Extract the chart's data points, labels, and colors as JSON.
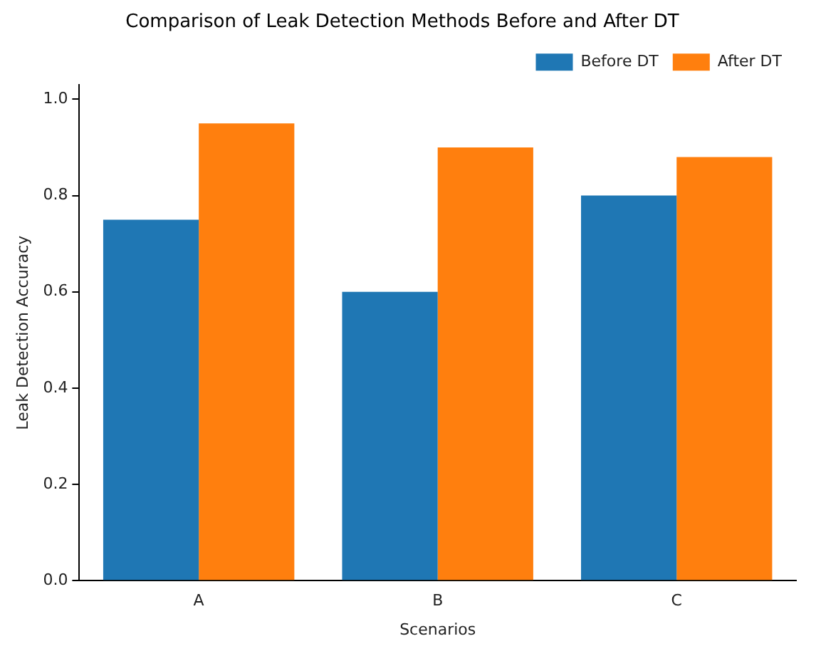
{
  "chart_data": {
    "type": "bar",
    "title": "Comparison of Leak Detection Methods Before and After DT",
    "xlabel": "Scenarios",
    "ylabel": "Leak Detection Accuracy",
    "categories": [
      "A",
      "B",
      "C"
    ],
    "series": [
      {
        "name": "Before DT",
        "color": "#1f77b4",
        "values": [
          0.75,
          0.6,
          0.8
        ]
      },
      {
        "name": "After DT",
        "color": "#ff7f0e",
        "values": [
          0.95,
          0.9,
          0.88
        ]
      }
    ],
    "ylim": [
      0,
      1.03
    ],
    "yticks": [
      {
        "value": 0,
        "label": "0.0"
      },
      {
        "value": 0.2,
        "label": "0.2"
      },
      {
        "value": 0.4,
        "label": "0.4"
      },
      {
        "value": 0.6,
        "label": "0.6"
      },
      {
        "value": 0.8,
        "label": "0.8"
      },
      {
        "value": 1,
        "label": "1.0"
      }
    ],
    "grid": false,
    "legend": "top right"
  }
}
